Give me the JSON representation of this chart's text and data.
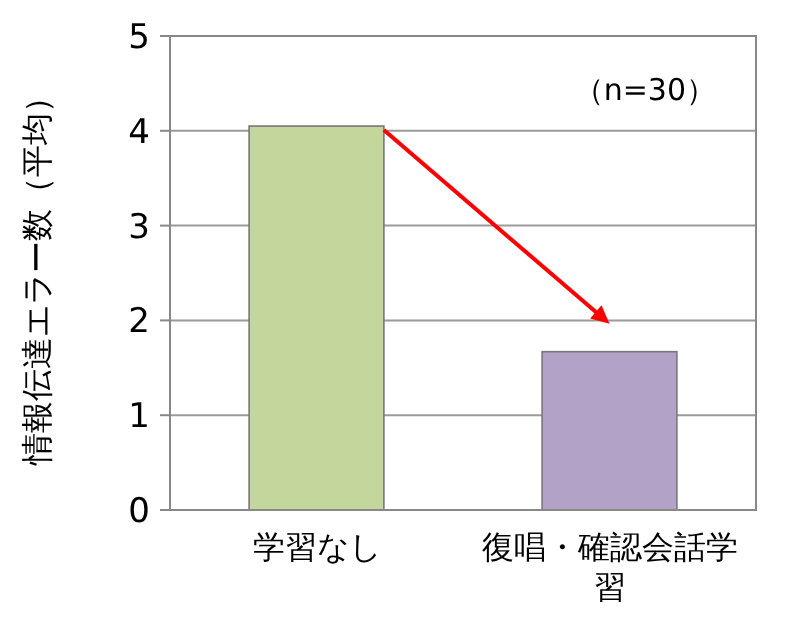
{
  "chart_data": {
    "type": "bar",
    "categories": [
      "学習なし",
      "復唱・確認会話学習"
    ],
    "values": [
      4.05,
      1.67
    ],
    "colors": [
      "#c3d69b",
      "#b3a2c7"
    ],
    "ylabel": "情報伝達エラー数（平均）",
    "ylim": [
      0,
      5
    ],
    "yticks": [
      0,
      1,
      2,
      3,
      4,
      5
    ],
    "grid": "y",
    "annotations": [
      "（n=30）"
    ]
  }
}
